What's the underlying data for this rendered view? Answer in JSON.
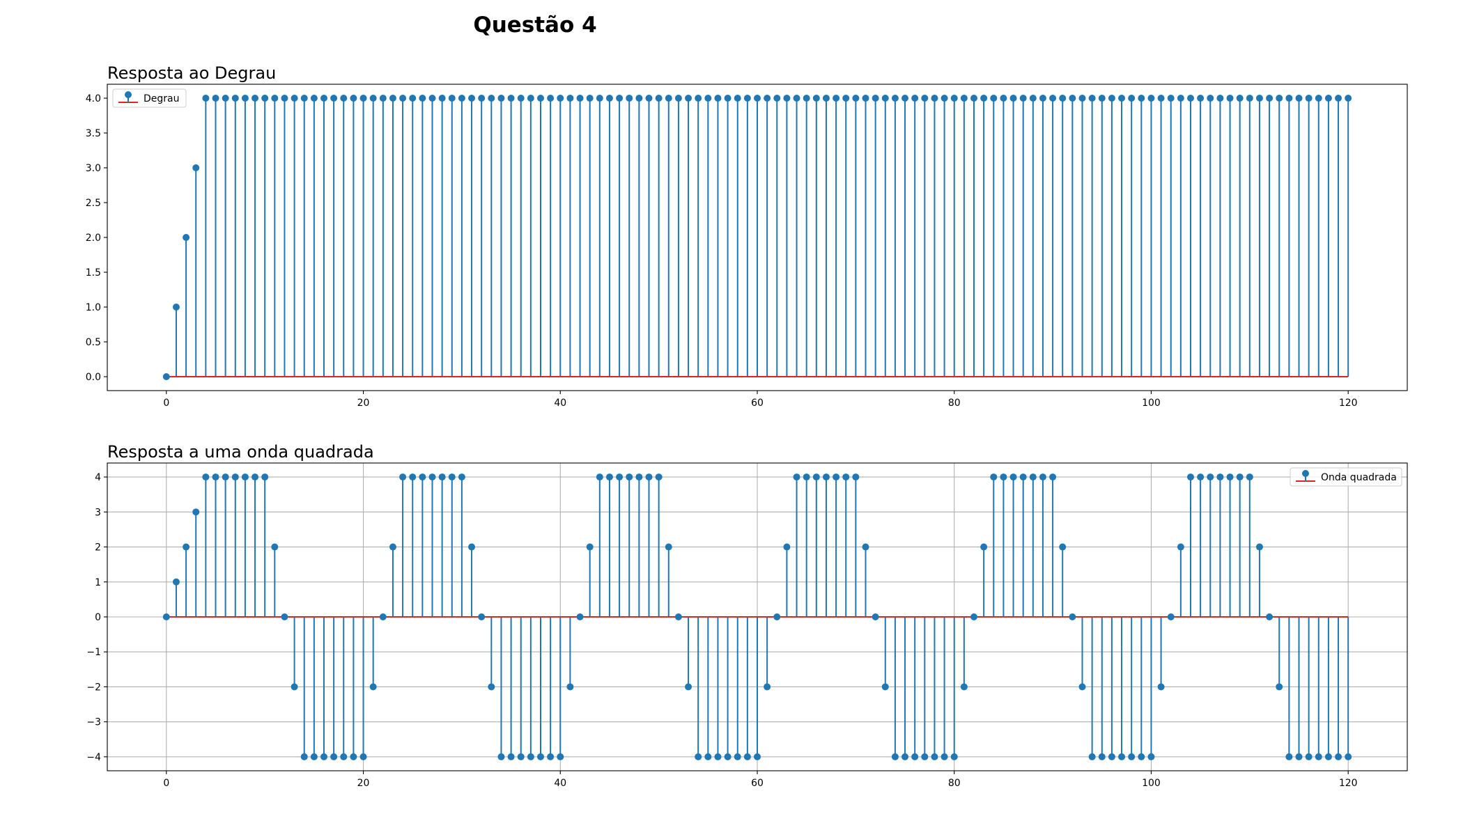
{
  "figure": {
    "suptitle": "Questão 4"
  },
  "colors": {
    "stem": "#1f77b4",
    "baseline": "#d62728",
    "grid": "#b0b0b0",
    "axes": "#000000"
  },
  "chart_data": [
    {
      "type": "stem",
      "title": "Resposta ao Degrau",
      "xlabel": "",
      "ylabel": "",
      "xlim": [
        -6,
        126
      ],
      "ylim": [
        -0.2,
        4.2
      ],
      "xticks": [
        0,
        20,
        40,
        60,
        80,
        100,
        120
      ],
      "yticks": [
        0.0,
        0.5,
        1.0,
        1.5,
        2.0,
        2.5,
        3.0,
        3.5,
        4.0
      ],
      "ytick_labels": [
        "0.0",
        "0.5",
        "1.0",
        "1.5",
        "2.0",
        "2.5",
        "3.0",
        "3.5",
        "4.0"
      ],
      "grid": false,
      "legend": {
        "position": "upper-left",
        "entries": [
          "Degrau"
        ]
      },
      "x": [
        0,
        1,
        2,
        3,
        4,
        5,
        6,
        7,
        8,
        9,
        10,
        11,
        12,
        13,
        14,
        15,
        16,
        17,
        18,
        19,
        20,
        21,
        22,
        23,
        24,
        25,
        26,
        27,
        28,
        29,
        30,
        31,
        32,
        33,
        34,
        35,
        36,
        37,
        38,
        39,
        40,
        41,
        42,
        43,
        44,
        45,
        46,
        47,
        48,
        49,
        50,
        51,
        52,
        53,
        54,
        55,
        56,
        57,
        58,
        59,
        60,
        61,
        62,
        63,
        64,
        65,
        66,
        67,
        68,
        69,
        70,
        71,
        72,
        73,
        74,
        75,
        76,
        77,
        78,
        79,
        80,
        81,
        82,
        83,
        84,
        85,
        86,
        87,
        88,
        89,
        90,
        91,
        92,
        93,
        94,
        95,
        96,
        97,
        98,
        99,
        100,
        101,
        102,
        103,
        104,
        105,
        106,
        107,
        108,
        109,
        110,
        111,
        112,
        113,
        114,
        115,
        116,
        117,
        118,
        119,
        120
      ],
      "values": [
        0,
        1,
        2,
        3,
        4,
        4,
        4,
        4,
        4,
        4,
        4,
        4,
        4,
        4,
        4,
        4,
        4,
        4,
        4,
        4,
        4,
        4,
        4,
        4,
        4,
        4,
        4,
        4,
        4,
        4,
        4,
        4,
        4,
        4,
        4,
        4,
        4,
        4,
        4,
        4,
        4,
        4,
        4,
        4,
        4,
        4,
        4,
        4,
        4,
        4,
        4,
        4,
        4,
        4,
        4,
        4,
        4,
        4,
        4,
        4,
        4,
        4,
        4,
        4,
        4,
        4,
        4,
        4,
        4,
        4,
        4,
        4,
        4,
        4,
        4,
        4,
        4,
        4,
        4,
        4,
        4,
        4,
        4,
        4,
        4,
        4,
        4,
        4,
        4,
        4,
        4,
        4,
        4,
        4,
        4,
        4,
        4,
        4,
        4,
        4,
        4,
        4,
        4,
        4,
        4,
        4,
        4,
        4,
        4,
        4,
        4,
        4,
        4,
        4,
        4,
        4,
        4,
        4,
        4,
        4,
        4
      ]
    },
    {
      "type": "stem",
      "title": "Resposta a uma onda quadrada",
      "xlabel": "",
      "ylabel": "",
      "xlim": [
        -6,
        126
      ],
      "ylim": [
        -4.4,
        4.4
      ],
      "xticks": [
        0,
        20,
        40,
        60,
        80,
        100,
        120
      ],
      "yticks": [
        -4,
        -3,
        -2,
        -1,
        0,
        1,
        2,
        3,
        4
      ],
      "ytick_labels": [
        "−4",
        "−3",
        "−2",
        "−1",
        "0",
        "1",
        "2",
        "3",
        "4"
      ],
      "grid": true,
      "legend": {
        "position": "upper-right",
        "entries": [
          "Onda quadrada"
        ]
      },
      "x": [
        0,
        1,
        2,
        3,
        4,
        5,
        6,
        7,
        8,
        9,
        10,
        11,
        12,
        13,
        14,
        15,
        16,
        17,
        18,
        19,
        20,
        21,
        22,
        23,
        24,
        25,
        26,
        27,
        28,
        29,
        30,
        31,
        32,
        33,
        34,
        35,
        36,
        37,
        38,
        39,
        40,
        41,
        42,
        43,
        44,
        45,
        46,
        47,
        48,
        49,
        50,
        51,
        52,
        53,
        54,
        55,
        56,
        57,
        58,
        59,
        60,
        61,
        62,
        63,
        64,
        65,
        66,
        67,
        68,
        69,
        70,
        71,
        72,
        73,
        74,
        75,
        76,
        77,
        78,
        79,
        80,
        81,
        82,
        83,
        84,
        85,
        86,
        87,
        88,
        89,
        90,
        91,
        92,
        93,
        94,
        95,
        96,
        97,
        98,
        99,
        100,
        101,
        102,
        103,
        104,
        105,
        106,
        107,
        108,
        109,
        110,
        111,
        112,
        113,
        114,
        115,
        116,
        117,
        118,
        119,
        120
      ],
      "values": [
        0,
        1,
        2,
        3,
        4,
        4,
        4,
        4,
        4,
        4,
        4,
        2,
        0,
        -2,
        -4,
        -4,
        -4,
        -4,
        -4,
        -4,
        -4,
        -2,
        0,
        2,
        4,
        4,
        4,
        4,
        4,
        4,
        4,
        2,
        0,
        -2,
        -4,
        -4,
        -4,
        -4,
        -4,
        -4,
        -4,
        -2,
        0,
        2,
        4,
        4,
        4,
        4,
        4,
        4,
        4,
        2,
        0,
        -2,
        -4,
        -4,
        -4,
        -4,
        -4,
        -4,
        -4,
        -2,
        0,
        2,
        4,
        4,
        4,
        4,
        4,
        4,
        4,
        2,
        0,
        -2,
        -4,
        -4,
        -4,
        -4,
        -4,
        -4,
        -4,
        -2,
        0,
        2,
        4,
        4,
        4,
        4,
        4,
        4,
        4,
        2,
        0,
        -2,
        -4,
        -4,
        -4,
        -4,
        -4,
        -4,
        -4,
        -2,
        0,
        2,
        4,
        4,
        4,
        4,
        4,
        4,
        4,
        2,
        0,
        -2,
        -4,
        -4,
        -4,
        -4,
        -4,
        -4,
        -4
      ]
    }
  ]
}
